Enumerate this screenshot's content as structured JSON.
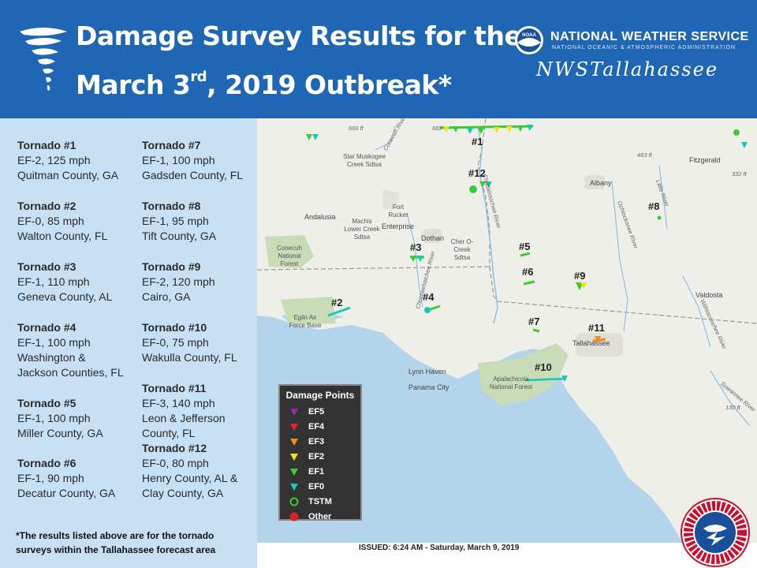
{
  "header": {
    "title_line1": "Damage Survey Results for the",
    "title_line2_pre": "March 3",
    "title_line2_sup": "rd",
    "title_line2_post": ", 2019 Outbreak*",
    "agency": "NATIONAL WEATHER SERVICE",
    "agency_sub": "NATIONAL OCEANIC & ATMOSPHERIC ADMINISTRATION",
    "office": "NWSTallahassee",
    "seal_text": "NOAA"
  },
  "tornadoes_col1": [
    {
      "name": "Tornado #1",
      "rating": "EF-2, 125 mph",
      "location": [
        "Quitman County, GA"
      ]
    },
    {
      "name": "Tornado #2",
      "rating": "EF-0, 85 mph",
      "location": [
        "Walton County, FL"
      ]
    },
    {
      "name": "Tornado #3",
      "rating": "EF-1, 110 mph",
      "location": [
        "Geneva County, AL"
      ]
    },
    {
      "name": "Tornado #4",
      "rating": "EF-1, 100 mph",
      "location": [
        "Washington &",
        "Jackson Counties, FL"
      ]
    },
    {
      "name": "Tornado #5",
      "rating": "EF-1, 100 mph",
      "location": [
        "Miller County, GA"
      ]
    },
    {
      "name": "Tornado #6",
      "rating": "EF-1, 90 mph",
      "location": [
        "Decatur County, GA"
      ]
    }
  ],
  "tornadoes_col2": [
    {
      "name": "Tornado #7",
      "rating": "EF-1, 100 mph",
      "location": [
        "Gadsden County, FL"
      ]
    },
    {
      "name": "Tornado #8",
      "rating": "EF-1, 95 mph",
      "location": [
        "Tift County, GA"
      ]
    },
    {
      "name": "Tornado #9",
      "rating": "EF-2, 120 mph",
      "location": [
        "Cairo, GA"
      ]
    },
    {
      "name": "Tornado #10",
      "rating": "EF-0, 75 mph",
      "location": [
        "Wakulla County, FL"
      ]
    },
    {
      "name": "Tornado #11",
      "rating": "EF-3, 140 mph",
      "location": [
        "Leon & Jefferson",
        "County, FL"
      ]
    },
    {
      "name": "Tornado #12",
      "rating": "EF-0, 80 mph",
      "location": [
        "Henry County, AL &",
        "Clay County, GA"
      ]
    }
  ],
  "footnote": "*The results listed above are for the tornado surveys within the Tallahassee forecast area",
  "legend": {
    "title": "Damage Points",
    "items": [
      {
        "label": "EF5",
        "color": "#9b2aa8",
        "shape": "triangle"
      },
      {
        "label": "EF4",
        "color": "#e8231f",
        "shape": "triangle"
      },
      {
        "label": "EF3",
        "color": "#f58a1f",
        "shape": "triangle"
      },
      {
        "label": "EF2",
        "color": "#f2e313",
        "shape": "triangle"
      },
      {
        "label": "EF1",
        "color": "#3fc83a",
        "shape": "triangle"
      },
      {
        "label": "EF0",
        "color": "#18c7b6",
        "shape": "triangle"
      },
      {
        "label": "TSTM",
        "color": "#3fc83a",
        "shape": "circle"
      },
      {
        "label": "Other",
        "color": "#d42424",
        "shape": "circle"
      }
    ]
  },
  "map": {
    "cities": [
      "Albany",
      "Fitzgerald",
      "Andalusia",
      "Enterprise",
      "Dothan",
      "Valdosta",
      "Tallahassee",
      "Lynn Haven",
      "Panama City"
    ],
    "places": [
      "Star Muskogee Creek Sdtsa",
      "Fort Rucker",
      "Machis Lower Creek Sdtsa",
      "Cher O-Creek Sdtsa",
      "Conecuh National Forest",
      "Eglin Air Force Base",
      "Apalachicola National Forest"
    ],
    "rivers": [
      "Conecuh River",
      "Chattahoochee River",
      "Choctawhatchee River",
      "Ochlockonee River",
      "Little River",
      "Withlacoochee River",
      "Suwannee River"
    ],
    "route_labels": [
      "666 ft",
      "682",
      "483 ft",
      "332 ft",
      "130 ft"
    ],
    "tornado_labels": [
      "#1",
      "#12",
      "#8",
      "#3",
      "#5",
      "#6",
      "#9",
      "#2",
      "#4",
      "#7",
      "#11",
      "#10"
    ]
  },
  "issued": "ISSUED: 6:24 AM - Saturday, March 9, 2019",
  "colors": {
    "header_bg": "#1f66b4",
    "panel_bg": "#c7e0f4",
    "water": "#b3d4ea",
    "land": "#efefe9",
    "forest": "#c9dcb8"
  }
}
